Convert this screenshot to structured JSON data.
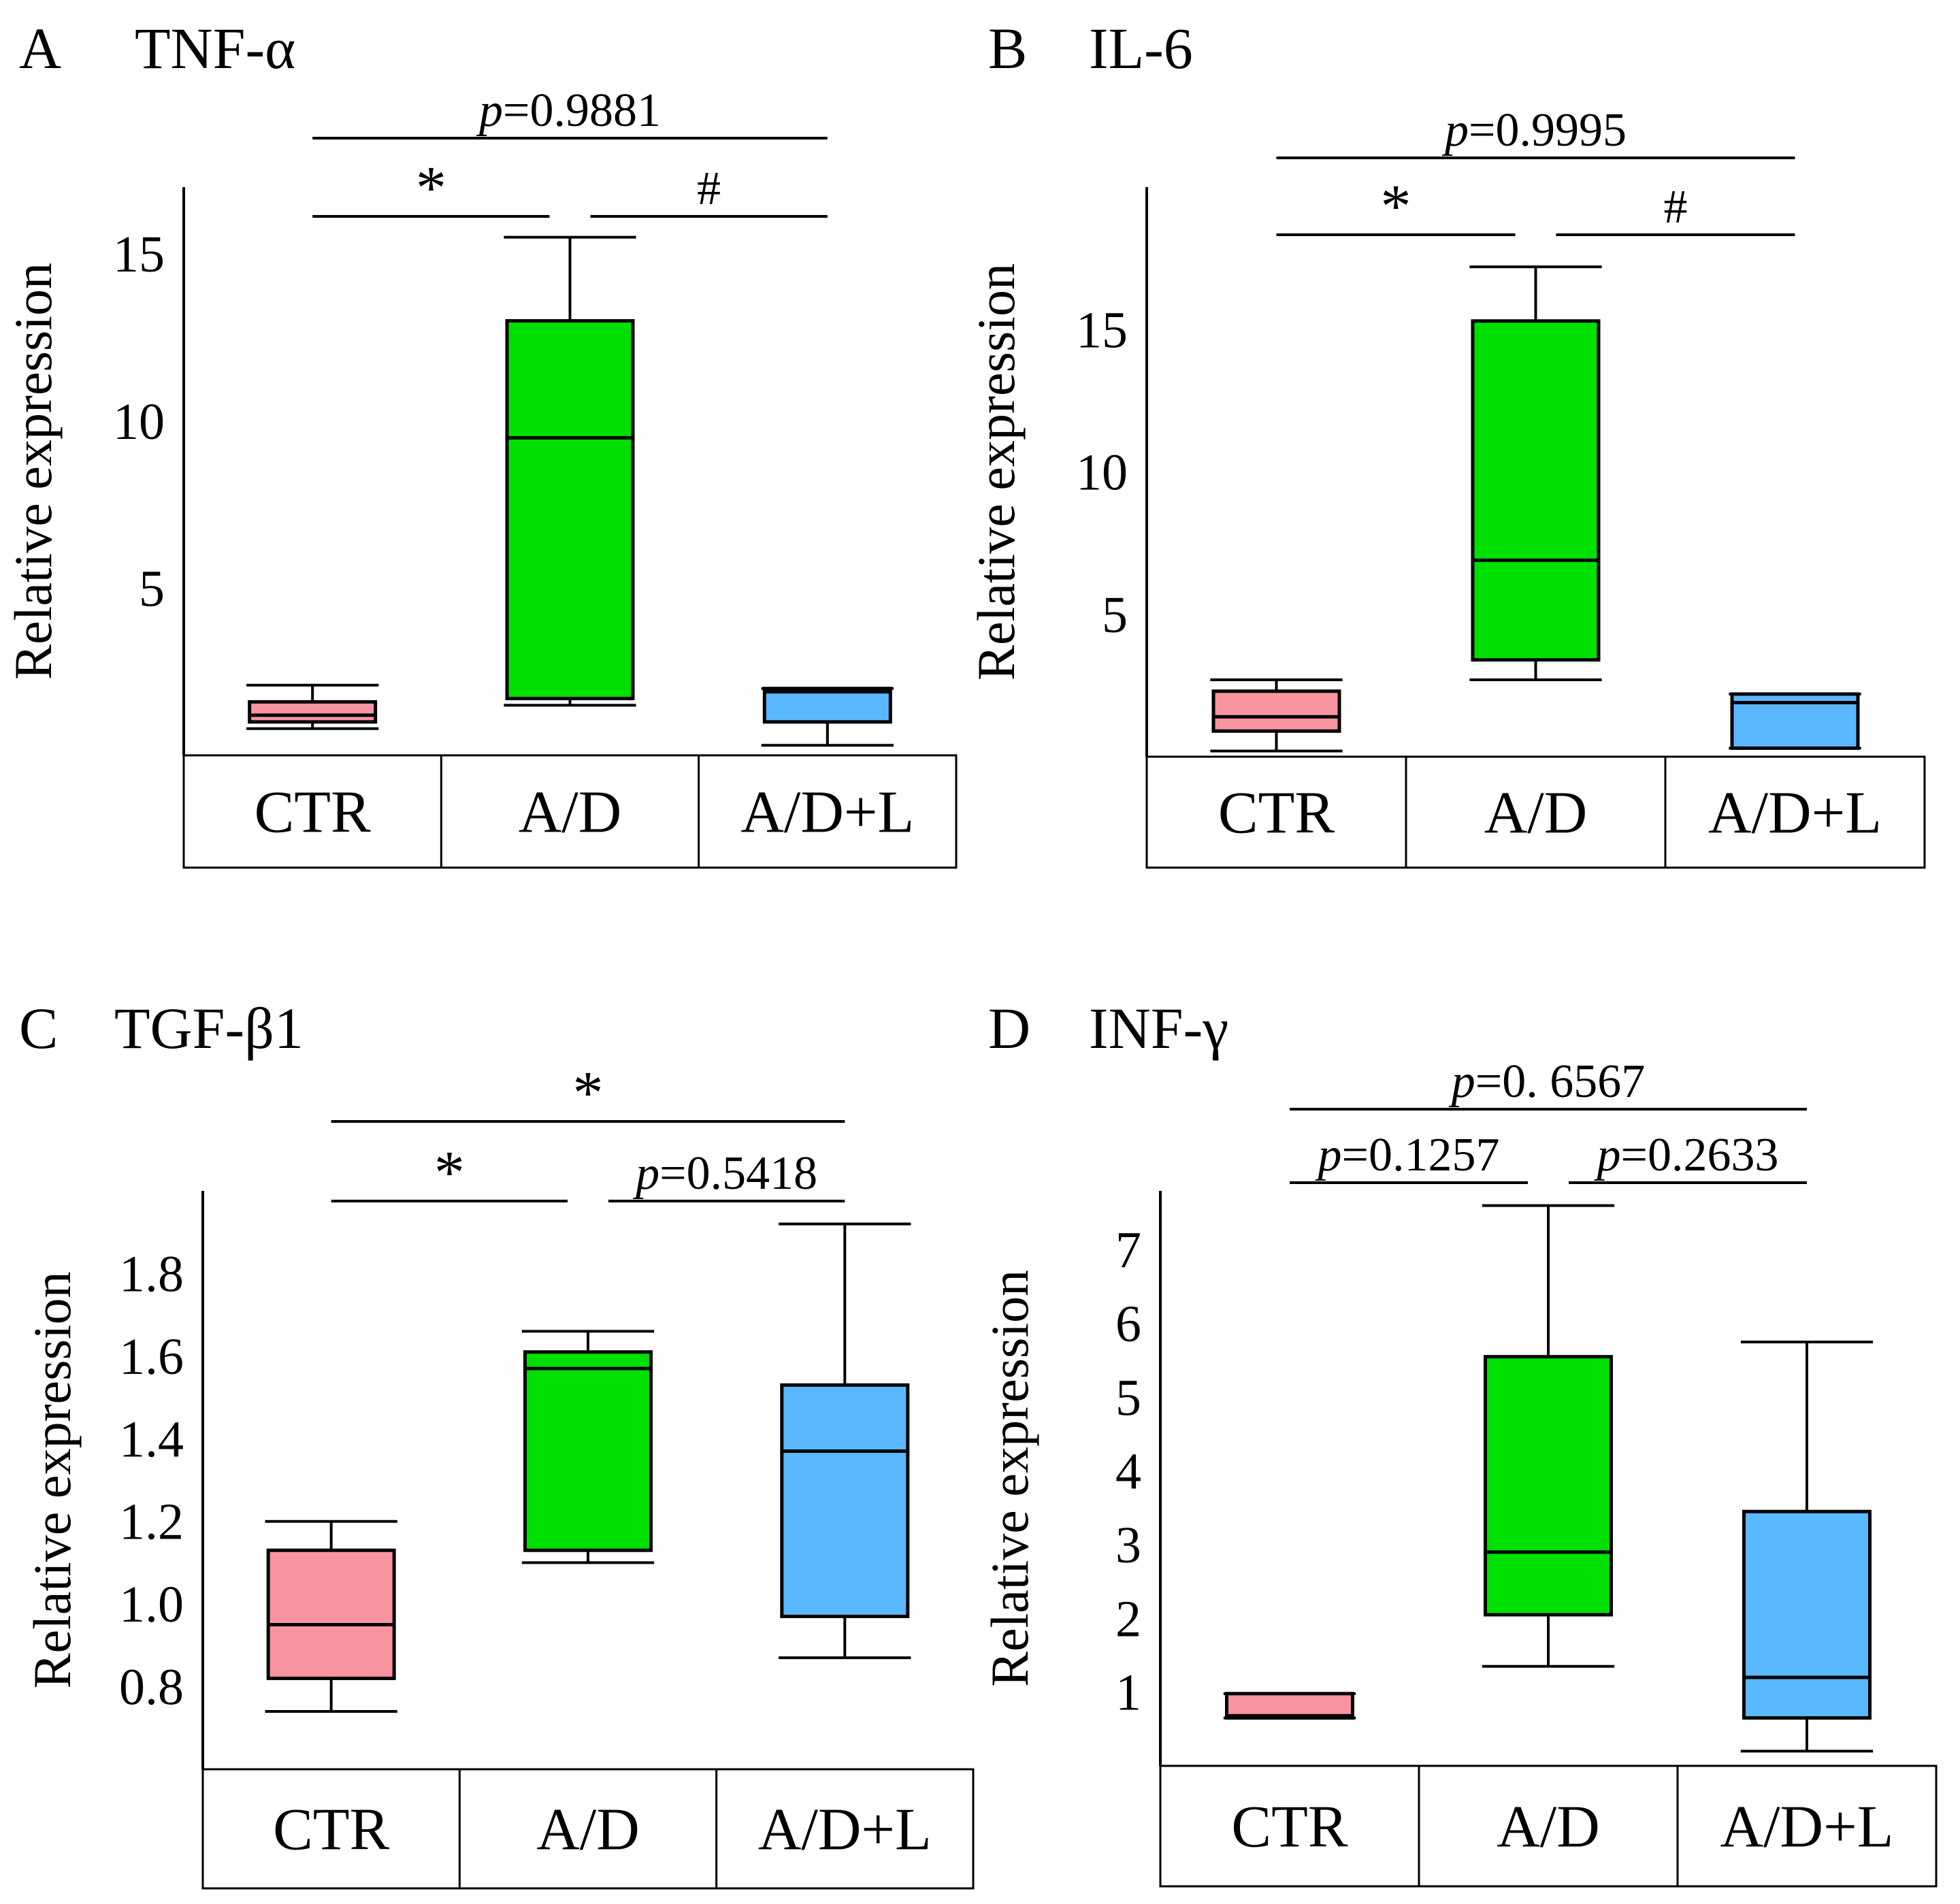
{
  "figure": "Cytokine relative expression box plots",
  "chart_data": [
    {
      "type": "box",
      "panel": "A",
      "title": "TNF-α",
      "ylabel": "Relative expression",
      "ylim": [
        0,
        17
      ],
      "yticks": [
        5,
        10,
        15
      ],
      "categories": [
        "CTR",
        "A/D",
        "A/D+L"
      ],
      "colors": [
        "#f8949f",
        "#00e000",
        "#5ab8ff"
      ],
      "boxes": [
        {
          "group": "CTR",
          "min": 0.8,
          "q1": 1.0,
          "median": 1.2,
          "q3": 1.6,
          "max": 2.1
        },
        {
          "group": "A/D",
          "min": 1.5,
          "q1": 1.7,
          "median": 9.5,
          "q3": 13.0,
          "max": 15.5
        },
        {
          "group": "A/D+L",
          "min": 0.3,
          "q1": 1.0,
          "median": 1.9,
          "q3": 2.0,
          "max": 2.0
        }
      ],
      "comparisons": [
        {
          "from": "CTR",
          "to": "A/D+L",
          "level": 2,
          "label": "=0.9881",
          "italic_prefix": "p"
        },
        {
          "from": "CTR",
          "to": "A/D",
          "level": 1,
          "label": "*"
        },
        {
          "from": "A/D",
          "to": "A/D+L",
          "level": 1,
          "label": "#"
        }
      ]
    },
    {
      "type": "box",
      "panel": "B",
      "title": "IL-6",
      "ylabel": "Relative expression",
      "ylim": [
        0,
        20
      ],
      "yticks": [
        5,
        10,
        15
      ],
      "categories": [
        "CTR",
        "A/D",
        "A/D+L"
      ],
      "colors": [
        "#f8949f",
        "#00e000",
        "#5ab8ff"
      ],
      "boxes": [
        {
          "group": "CTR",
          "min": 0.2,
          "q1": 0.9,
          "median": 1.4,
          "q3": 2.3,
          "max": 2.7
        },
        {
          "group": "A/D",
          "min": 2.7,
          "q1": 3.4,
          "median": 6.9,
          "q3": 15.3,
          "max": 17.2
        },
        {
          "group": "A/D+L",
          "min": 0.3,
          "q1": 0.3,
          "median": 1.9,
          "q3": 2.2,
          "max": 2.2
        }
      ],
      "comparisons": [
        {
          "from": "CTR",
          "to": "A/D+L",
          "level": 2,
          "label": "=0.9995",
          "italic_prefix": "p"
        },
        {
          "from": "CTR",
          "to": "A/D",
          "level": 1,
          "label": "*"
        },
        {
          "from": "A/D",
          "to": "A/D+L",
          "level": 1,
          "label": "#"
        }
      ]
    },
    {
      "type": "box",
      "panel": "C",
      "title": "TGF-β1",
      "ylabel": "Relative expression",
      "ylim": [
        0.6,
        2.0
      ],
      "yticks": [
        0.8,
        1.0,
        1.2,
        1.4,
        1.6,
        1.8
      ],
      "ytick_labels": [
        "0.8",
        "1.0",
        "1.2",
        "1.4",
        "1.6",
        "1.8"
      ],
      "categories": [
        "CTR",
        "A/D",
        "A/D+L"
      ],
      "colors": [
        "#f8949f",
        "#00e000",
        "#5ab8ff"
      ],
      "boxes": [
        {
          "group": "CTR",
          "min": 0.74,
          "q1": 0.82,
          "median": 0.95,
          "q3": 1.13,
          "max": 1.2
        },
        {
          "group": "A/D",
          "min": 1.1,
          "q1": 1.13,
          "median": 1.57,
          "q3": 1.61,
          "max": 1.66
        },
        {
          "group": "A/D+L",
          "min": 0.87,
          "q1": 0.97,
          "median": 1.37,
          "q3": 1.53,
          "max": 1.92
        }
      ],
      "comparisons": [
        {
          "from": "CTR",
          "to": "A/D+L",
          "level": 2,
          "label": "*"
        },
        {
          "from": "CTR",
          "to": "A/D",
          "level": 1,
          "label": "*"
        },
        {
          "from": "A/D",
          "to": "A/D+L",
          "level": 1,
          "label": "=0.5418",
          "italic_prefix": "p"
        }
      ]
    },
    {
      "type": "box",
      "panel": "D",
      "title": "INF-γ",
      "ylabel": "Relative expression",
      "ylim": [
        0,
        7.8
      ],
      "yticks": [
        1,
        2,
        3,
        4,
        5,
        6,
        7
      ],
      "categories": [
        "CTR",
        "A/D",
        "A/D+L"
      ],
      "colors": [
        "#f8949f",
        "#00e000",
        "#5ab8ff"
      ],
      "boxes": [
        {
          "group": "CTR",
          "min": 0.65,
          "q1": 0.65,
          "median": 0.68,
          "q3": 0.98,
          "max": 0.98
        },
        {
          "group": "A/D",
          "min": 1.35,
          "q1": 2.05,
          "median": 2.9,
          "q3": 5.55,
          "max": 7.6
        },
        {
          "group": "A/D+L",
          "min": 0.2,
          "q1": 0.65,
          "median": 1.2,
          "q3": 3.45,
          "max": 5.75
        }
      ],
      "comparisons": [
        {
          "from": "CTR",
          "to": "A/D+L",
          "level": 2,
          "label": "=0. 6567",
          "italic_prefix": "p"
        },
        {
          "from": "CTR",
          "to": "A/D",
          "level": 1,
          "label": "=0.1257",
          "italic_prefix": "p"
        },
        {
          "from": "A/D",
          "to": "A/D+L",
          "level": 1,
          "label": "=0.2633",
          "italic_prefix": "p"
        }
      ]
    }
  ]
}
